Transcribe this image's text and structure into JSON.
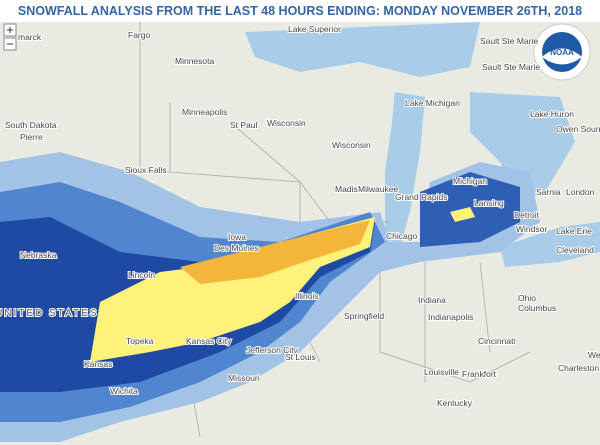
{
  "header": {
    "title": "SNOWFALL ANALYSIS FROM THE LAST 48 HOURS ENDING: MONDAY NOVEMBER 26TH, 2018"
  },
  "logo": {
    "text": "NOAA"
  },
  "labels": [
    "marck",
    "Fargo",
    "Minnesota",
    "Lake Superior",
    "Sault Ste Marie",
    "Sault Ste Marie",
    "South Dakota",
    "Pierre",
    "Minneapolis",
    "St Paul",
    "Wisconsin",
    "Wisconsin",
    "Lake Michigan",
    "Lake Huron",
    "Owen Sound",
    "Sioux Falls",
    "Michigan",
    "Sarnia",
    "London",
    "Madison",
    "Milwaukee",
    "Grand Rapids",
    "Lansing",
    "Detroit",
    "Windsor",
    "Lake Erie",
    "Nebraska",
    "Iowa",
    "Des Moines",
    "Chicago",
    "Cleveland",
    "Lincoln",
    "Illinois",
    "Indiana",
    "Ohio",
    "Columbus",
    "UNITED STATES",
    "Springfield",
    "Indianapolis",
    "Topeka",
    "Kansas City",
    "Jefferson City",
    "Cincinnati",
    "Kansas",
    "St Louis",
    "Missouri",
    "West",
    "Charleston",
    "Louisville",
    "Frankfort",
    "Wichita",
    "Kentucky"
  ]
}
